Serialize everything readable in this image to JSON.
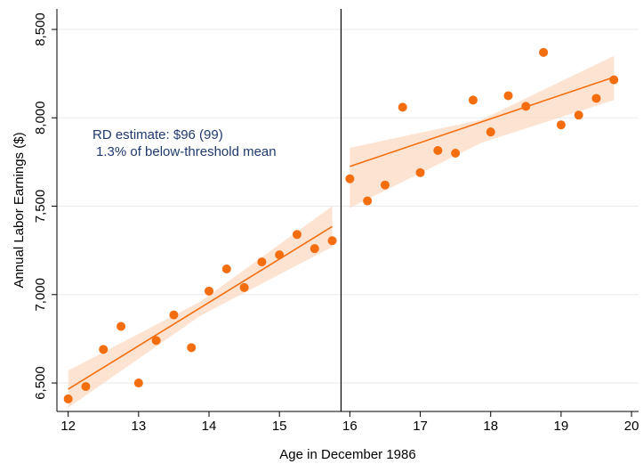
{
  "chart_data": {
    "type": "scatter",
    "x_label": "Age in December 1986",
    "y_label": "Annual Labor Earnings ($)",
    "annotations": [
      "RD estimate: $96 (99)",
      "1.3% of below-threshold mean"
    ],
    "xlim": [
      11.84,
      20.1
    ],
    "ylim": [
      6339,
      8616
    ],
    "xticks": [
      12,
      13,
      14,
      15,
      16,
      17,
      18,
      19,
      20
    ],
    "yticks": [
      {
        "value": 6500,
        "label": "6,500"
      },
      {
        "value": 7000,
        "label": "7,000"
      },
      {
        "value": 7500,
        "label": "7,500"
      },
      {
        "value": 8000,
        "label": "8,000"
      },
      {
        "value": 8500,
        "label": "8,500"
      }
    ],
    "grid": true,
    "cutoff": 15.875,
    "color": "#f46d0e",
    "band_color": "#fcd9c2",
    "points": [
      {
        "x": [
          12,
          12.25,
          12.5,
          12.75,
          13,
          13.25,
          13.5,
          13.75,
          14,
          14.25,
          14.5,
          14.75,
          15,
          15.25,
          15.5,
          15.75
        ],
        "y": [
          6410,
          6480,
          6690,
          6820,
          6500,
          6740,
          6885,
          6700,
          7020,
          7145,
          7040,
          7185,
          7225,
          7340,
          7260,
          7305
        ]
      },
      {
        "x": [
          16,
          16.25,
          16.5,
          16.75,
          17,
          17.25,
          17.5,
          17.75,
          18,
          18.25,
          18.5,
          18.75,
          19,
          19.25,
          19.5,
          19.75
        ],
        "y": [
          7655,
          7530,
          7620,
          8060,
          7690,
          7815,
          7800,
          8100,
          7920,
          8125,
          8065,
          8370,
          7960,
          8015,
          8110,
          8215
        ]
      }
    ],
    "fits": [
      {
        "x": [
          12,
          15.75
        ],
        "y": [
          6465,
          7385
        ]
      },
      {
        "x": [
          16,
          19.75
        ],
        "y": [
          7725,
          8230
        ]
      }
    ],
    "bands": [
      {
        "x": [
          12,
          13.875,
          15.75
        ],
        "lower": [
          6360,
          6880,
          7270
        ],
        "upper": [
          6570,
          6960,
          7500
        ]
      },
      {
        "x": [
          16,
          17.875,
          19.75
        ],
        "lower": [
          7490,
          7860,
          8100
        ],
        "upper": [
          7830,
          7990,
          8350
        ]
      }
    ]
  }
}
